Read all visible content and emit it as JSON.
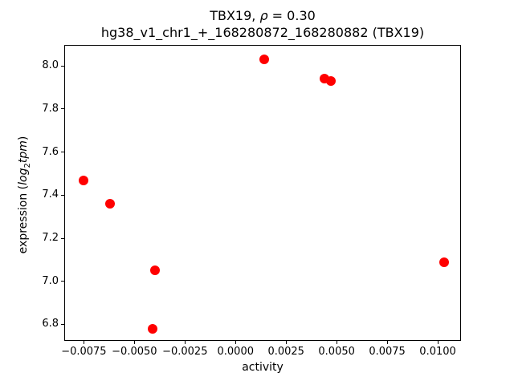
{
  "figure": {
    "background": "#ffffff",
    "text_color": "#000000"
  },
  "chart_data": {
    "type": "scatter",
    "title": "TBX19, ρ = 0.30",
    "title_parts": {
      "pre": "TBX19, ",
      "rho": "ρ",
      "post": " = 0.30"
    },
    "subtitle": "hg38_v1_chr1_+_168280872_168280882 (TBX19)",
    "xlabel": "activity",
    "ylabel": "expression (log2tpm)",
    "ylabel_parts": {
      "prefix": "expression (",
      "italic1": "log",
      "subscript": "2",
      "italic2": "tpm",
      "suffix": ")"
    },
    "marker_color": "#ff0000",
    "grid": false,
    "legend": null,
    "xlim": [
      -0.00843,
      0.01111
    ],
    "ylim": [
      6.727,
      8.094
    ],
    "x_ticks": {
      "values": [
        -0.0075,
        -0.005,
        -0.0025,
        0.0,
        0.0025,
        0.005,
        0.0075,
        0.01
      ],
      "labels": [
        "−0.0075",
        "−0.0050",
        "−0.0025",
        "0.0000",
        "0.0025",
        "0.0050",
        "0.0075",
        "0.0100"
      ]
    },
    "y_ticks": {
      "values": [
        6.8,
        7.0,
        7.2,
        7.4,
        7.6,
        7.8,
        8.0
      ],
      "labels": [
        "6.8",
        "7.0",
        "7.2",
        "7.4",
        "7.6",
        "7.8",
        "8.0"
      ]
    },
    "points": [
      {
        "x": -0.0075,
        "y": 7.47
      },
      {
        "x": -0.0062,
        "y": 7.36
      },
      {
        "x": -0.0041,
        "y": 6.78
      },
      {
        "x": -0.004,
        "y": 7.05
      },
      {
        "x": 0.0014,
        "y": 8.03
      },
      {
        "x": 0.0044,
        "y": 7.94
      },
      {
        "x": 0.0047,
        "y": 7.93
      },
      {
        "x": 0.0103,
        "y": 7.09
      }
    ]
  }
}
